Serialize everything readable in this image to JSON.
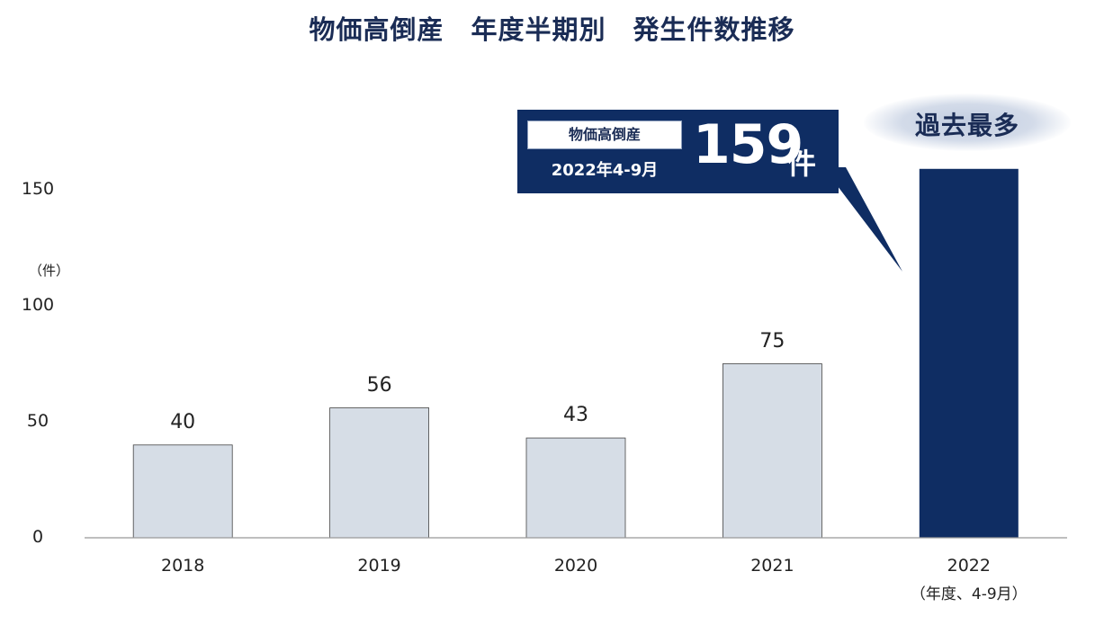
{
  "chart_data": {
    "type": "bar",
    "title": "物価高倒産　年度半期別　発生件数推移",
    "y_unit": "（件）",
    "categories": [
      "2018",
      "2019",
      "2020",
      "2021",
      "2022"
    ],
    "category_sublabels": [
      "",
      "",
      "",
      "",
      "（年度、4-9月）"
    ],
    "values": [
      40,
      56,
      43,
      75,
      159
    ],
    "data_labels": [
      "40",
      "56",
      "43",
      "75",
      ""
    ],
    "y_ticks": [
      "0",
      "50",
      "100",
      "150"
    ],
    "ylim": [
      0,
      160
    ],
    "grid": false,
    "colors": {
      "default_bar": "#d6dde6",
      "highlight_bar": "#0f2d63",
      "bar_border": "#444444",
      "axis": "#999999",
      "title": "#1a2c55",
      "callout": "#0f2d63"
    },
    "callout": {
      "tag": "物価高倒産",
      "period": "2022年4-9月",
      "value": "159",
      "unit": "件"
    },
    "badge": "過去最多"
  }
}
